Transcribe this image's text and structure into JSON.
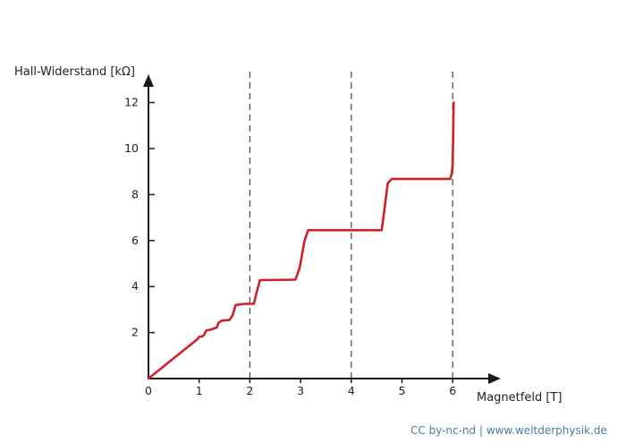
{
  "chart_data": {
    "type": "line",
    "title": "",
    "xlabel": "Magnetfeld [T]",
    "ylabel": "Hall-Widerstand [kΩ]",
    "xlim": [
      0,
      6.5
    ],
    "ylim": [
      0,
      12.8
    ],
    "x_ticks": [
      0,
      1,
      2,
      3,
      4,
      5,
      6
    ],
    "y_ticks": [
      2,
      4,
      6,
      8,
      10,
      12
    ],
    "x_tick_labels": [
      "0",
      "1",
      "2",
      "3",
      "4",
      "5",
      "6"
    ],
    "y_tick_labels": [
      "2",
      "4",
      "6",
      "8",
      "10",
      "12"
    ],
    "grid": false,
    "reference_lines_x": [
      2,
      4,
      6
    ],
    "series": [
      {
        "color": "#d0202a",
        "x": [
          0,
          0.97,
          1.0,
          1.05,
          1.1,
          1.12,
          1.15,
          1.22,
          1.35,
          1.38,
          1.45,
          1.6,
          1.66,
          1.72,
          1.9,
          2.08,
          2.14,
          2.2,
          2.9,
          2.98,
          3.08,
          3.15,
          4.6,
          4.65,
          4.72,
          4.8,
          5.95,
          5.98,
          6.0,
          6.02
        ],
        "y": [
          0,
          1.72,
          1.82,
          1.82,
          1.9,
          2.02,
          2.1,
          2.12,
          2.22,
          2.42,
          2.52,
          2.55,
          2.75,
          3.2,
          3.25,
          3.25,
          3.8,
          4.28,
          4.3,
          4.8,
          6.0,
          6.45,
          6.45,
          7.3,
          8.5,
          8.68,
          8.68,
          8.9,
          9.3,
          12.0
        ]
      }
    ]
  },
  "credit": "CC by-nc-nd | www.weltderphysik.de",
  "colors": {
    "curve": "#d0202a",
    "axis": "#1a1a1a",
    "dashed": "#444444",
    "credit": "#4b7aa3"
  }
}
